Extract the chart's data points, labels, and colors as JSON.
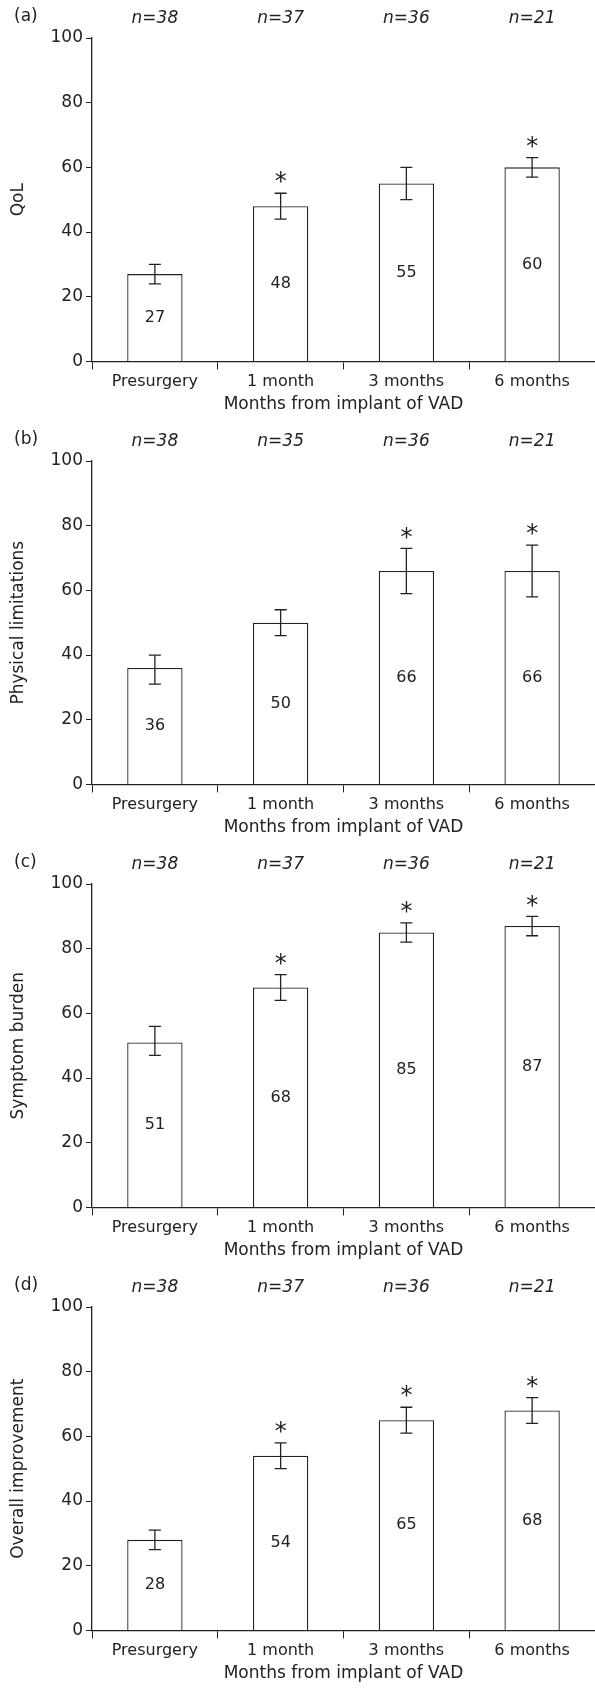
{
  "chart_data": [
    {
      "type": "bar",
      "ylabel": "QoL",
      "xlabel": "Months from implant of VAD",
      "categories": [
        "Presurgery",
        "1 month",
        "3 months",
        "6 months"
      ],
      "values": [
        27,
        48,
        55,
        60
      ],
      "color": "#ffffff",
      "errors": [
        [
          24,
          30
        ],
        [
          44,
          52
        ],
        [
          50,
          60
        ],
        [
          57,
          63
        ]
      ],
      "data_labels": true,
      "ylim": [
        0,
        100
      ],
      "yticks": [
        0,
        20,
        40,
        60,
        80,
        100
      ],
      "grid": false,
      "legend": false,
      "annotations": [
        "(a)",
        "n=38",
        "n=37",
        "n=36",
        "n=21",
        {
          "text": "*",
          "x": "1 month",
          "y": 48
        },
        {
          "text": "*",
          "x": "6 months",
          "y": 60
        }
      ]
    },
    {
      "type": "bar",
      "ylabel": "Physical limitations",
      "xlabel": "Months from implant of VAD",
      "categories": [
        "Presurgery",
        "1 month",
        "3 months",
        "6 months"
      ],
      "values": [
        36,
        50,
        66,
        66
      ],
      "color": "#ffffff",
      "errors": [
        [
          31,
          40
        ],
        [
          46,
          54
        ],
        [
          59,
          73
        ],
        [
          58,
          74
        ]
      ],
      "data_labels": true,
      "ylim": [
        0,
        100
      ],
      "yticks": [
        0,
        20,
        40,
        60,
        80,
        100
      ],
      "grid": false,
      "legend": false,
      "annotations": [
        "(b)",
        "n=38",
        "n=35",
        "n=36",
        "n=21",
        {
          "text": "*",
          "x": "3 months",
          "y": 66
        },
        {
          "text": "*",
          "x": "6 months",
          "y": 66
        }
      ]
    },
    {
      "type": "bar",
      "ylabel": "Symptom burden",
      "xlabel": "Months from implant of VAD",
      "categories": [
        "Presurgery",
        "1 month",
        "3 months",
        "6 months"
      ],
      "values": [
        51,
        68,
        85,
        87
      ],
      "color": "#ffffff",
      "errors": [
        [
          47,
          56
        ],
        [
          64,
          72
        ],
        [
          82,
          88
        ],
        [
          84,
          90
        ]
      ],
      "data_labels": true,
      "ylim": [
        0,
        100
      ],
      "yticks": [
        0,
        20,
        40,
        60,
        80,
        100
      ],
      "grid": false,
      "legend": false,
      "annotations": [
        "(c)",
        "n=38",
        "n=37",
        "n=36",
        "n=21",
        {
          "text": "*",
          "x": "1 month",
          "y": 68
        },
        {
          "text": "*",
          "x": "3 months",
          "y": 85
        },
        {
          "text": "*",
          "x": "6 months",
          "y": 87
        }
      ]
    },
    {
      "type": "bar",
      "ylabel": "Overall improvement",
      "xlabel": "Months from implant of VAD",
      "categories": [
        "Presurgery",
        "1 month",
        "3 months",
        "6 months"
      ],
      "values": [
        28,
        54,
        65,
        68
      ],
      "color": "#ffffff",
      "errors": [
        [
          25,
          31
        ],
        [
          50,
          58
        ],
        [
          61,
          69
        ],
        [
          64,
          72
        ]
      ],
      "data_labels": true,
      "ylim": [
        0,
        100
      ],
      "yticks": [
        0,
        20,
        40,
        60,
        80,
        100
      ],
      "grid": false,
      "legend": false,
      "annotations": [
        "(d)",
        "n=38",
        "n=37",
        "n=36",
        "n=21",
        {
          "text": "*",
          "x": "1 month",
          "y": 54
        },
        {
          "text": "*",
          "x": "3 months",
          "y": 65
        },
        {
          "text": "*",
          "x": "6 months",
          "y": 68
        }
      ]
    }
  ]
}
